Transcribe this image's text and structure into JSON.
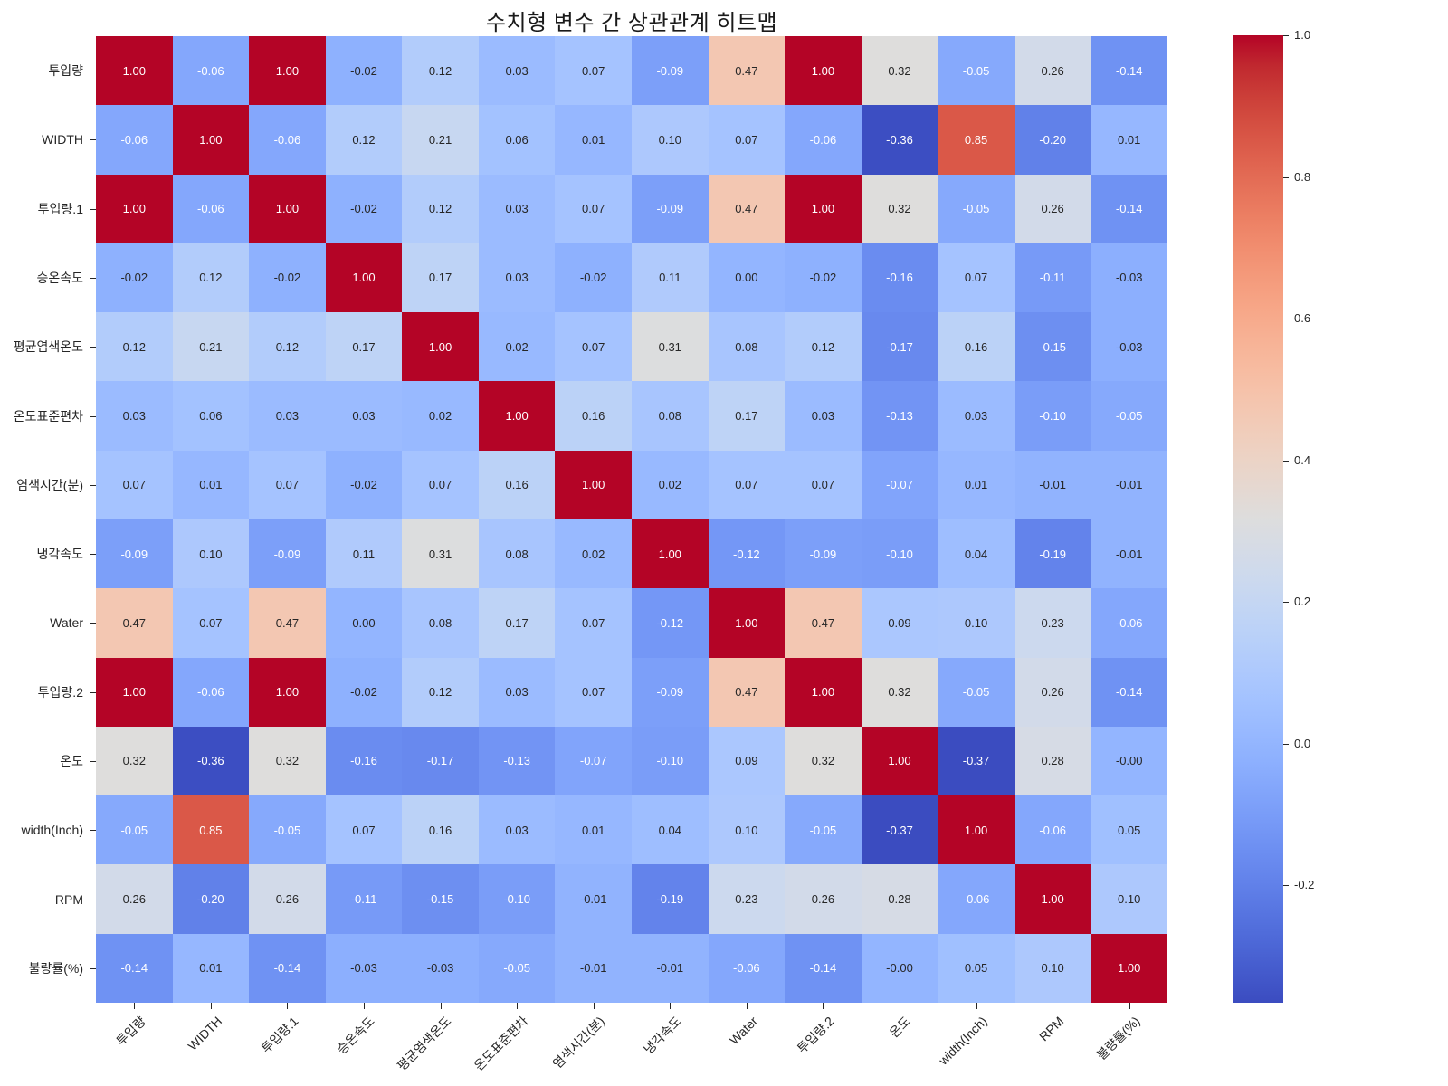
{
  "title": "수치형 변수 간 상관관계 히트맵",
  "chart_data": {
    "type": "heatmap",
    "title": "수치형 변수 간 상관관계 히트맵",
    "variables": [
      "투입량",
      "WIDTH",
      "투입량.1",
      "승온속도",
      "평균염색온도",
      "온도표준편차",
      "염색시간(분)",
      "냉각속도",
      "Water",
      "투입량.2",
      "온도",
      "width(Inch)",
      "RPM",
      "불량률(%)"
    ],
    "matrix": [
      [
        "1.00",
        "-0.06",
        "1.00",
        "-0.02",
        "0.12",
        "0.03",
        "0.07",
        "-0.09",
        "0.47",
        "1.00",
        "0.32",
        "-0.05",
        "0.26",
        "-0.14"
      ],
      [
        "-0.06",
        "1.00",
        "-0.06",
        "0.12",
        "0.21",
        "0.06",
        "0.01",
        "0.10",
        "0.07",
        "-0.06",
        "-0.36",
        "0.85",
        "-0.20",
        "0.01"
      ],
      [
        "1.00",
        "-0.06",
        "1.00",
        "-0.02",
        "0.12",
        "0.03",
        "0.07",
        "-0.09",
        "0.47",
        "1.00",
        "0.32",
        "-0.05",
        "0.26",
        "-0.14"
      ],
      [
        "-0.02",
        "0.12",
        "-0.02",
        "1.00",
        "0.17",
        "0.03",
        "-0.02",
        "0.11",
        "0.00",
        "-0.02",
        "-0.16",
        "0.07",
        "-0.11",
        "-0.03"
      ],
      [
        "0.12",
        "0.21",
        "0.12",
        "0.17",
        "1.00",
        "0.02",
        "0.07",
        "0.31",
        "0.08",
        "0.12",
        "-0.17",
        "0.16",
        "-0.15",
        "-0.03"
      ],
      [
        "0.03",
        "0.06",
        "0.03",
        "0.03",
        "0.02",
        "1.00",
        "0.16",
        "0.08",
        "0.17",
        "0.03",
        "-0.13",
        "0.03",
        "-0.10",
        "-0.05"
      ],
      [
        "0.07",
        "0.01",
        "0.07",
        "-0.02",
        "0.07",
        "0.16",
        "1.00",
        "0.02",
        "0.07",
        "0.07",
        "-0.07",
        "0.01",
        "-0.01",
        "-0.01"
      ],
      [
        "-0.09",
        "0.10",
        "-0.09",
        "0.11",
        "0.31",
        "0.08",
        "0.02",
        "1.00",
        "-0.12",
        "-0.09",
        "-0.10",
        "0.04",
        "-0.19",
        "-0.01"
      ],
      [
        "0.47",
        "0.07",
        "0.47",
        "0.00",
        "0.08",
        "0.17",
        "0.07",
        "-0.12",
        "1.00",
        "0.47",
        "0.09",
        "0.10",
        "0.23",
        "-0.06"
      ],
      [
        "1.00",
        "-0.06",
        "1.00",
        "-0.02",
        "0.12",
        "0.03",
        "0.07",
        "-0.09",
        "0.47",
        "1.00",
        "0.32",
        "-0.05",
        "0.26",
        "-0.14"
      ],
      [
        "0.32",
        "-0.36",
        "0.32",
        "-0.16",
        "-0.17",
        "-0.13",
        "-0.07",
        "-0.10",
        "0.09",
        "0.32",
        "1.00",
        "-0.37",
        "0.28",
        "-0.00"
      ],
      [
        "-0.05",
        "0.85",
        "-0.05",
        "0.07",
        "0.16",
        "0.03",
        "0.01",
        "0.04",
        "0.10",
        "-0.05",
        "-0.37",
        "1.00",
        "-0.06",
        "0.05"
      ],
      [
        "0.26",
        "-0.20",
        "0.26",
        "-0.11",
        "-0.15",
        "-0.10",
        "-0.01",
        "-0.19",
        "0.23",
        "0.26",
        "0.28",
        "-0.06",
        "1.00",
        "0.10"
      ],
      [
        "-0.14",
        "0.01",
        "-0.14",
        "-0.03",
        "-0.03",
        "-0.05",
        "-0.01",
        "-0.01",
        "-0.06",
        "-0.14",
        "-0.00",
        "0.05",
        "0.10",
        "1.00"
      ]
    ],
    "colormap": {
      "name": "coolwarm",
      "vmin": -0.366,
      "vmax": 1.0,
      "anchors": [
        [
          59,
          76,
          192
        ],
        [
          68,
          90,
          204
        ],
        [
          77,
          104,
          215
        ],
        [
          87,
          117,
          225
        ],
        [
          98,
          130,
          234
        ],
        [
          108,
          142,
          241
        ],
        [
          119,
          154,
          247
        ],
        [
          130,
          165,
          251
        ],
        [
          141,
          176,
          254
        ],
        [
          152,
          185,
          255
        ],
        [
          163,
          194,
          255
        ],
        [
          174,
          201,
          253
        ],
        [
          184,
          208,
          249
        ],
        [
          194,
          213,
          244
        ],
        [
          204,
          217,
          238
        ],
        [
          213,
          219,
          230
        ],
        [
          221,
          221,
          221
        ],
        [
          229,
          216,
          209
        ],
        [
          236,
          211,
          197
        ],
        [
          241,
          204,
          185
        ],
        [
          245,
          196,
          173
        ],
        [
          247,
          187,
          160
        ],
        [
          247,
          177,
          148
        ],
        [
          247,
          166,
          135
        ],
        [
          244,
          154,
          123
        ],
        [
          241,
          141,
          111
        ],
        [
          236,
          127,
          99
        ],
        [
          229,
          112,
          88
        ],
        [
          222,
          96,
          77
        ],
        [
          213,
          80,
          66
        ],
        [
          203,
          62,
          56
        ],
        [
          192,
          40,
          47
        ],
        [
          180,
          4,
          38
        ]
      ]
    },
    "colorbar": {
      "position": "right",
      "ticks": [
        {
          "label": "1.0",
          "value": 1.0
        },
        {
          "label": "0.8",
          "value": 0.8
        },
        {
          "label": "0.6",
          "value": 0.6
        },
        {
          "label": "0.4",
          "value": 0.4
        },
        {
          "label": "0.2",
          "value": 0.2
        },
        {
          "label": "0.0",
          "value": 0.0
        },
        {
          "label": "-0.2",
          "value": -0.2
        }
      ]
    },
    "annotation": {
      "dark_text": "#262626",
      "light_text": "#ffffff",
      "luminance_threshold": 0.408
    },
    "axes": {
      "x_label_rotation_deg": 45,
      "tick_color": "#262626",
      "label_color": "#262626",
      "grid": false
    }
  }
}
